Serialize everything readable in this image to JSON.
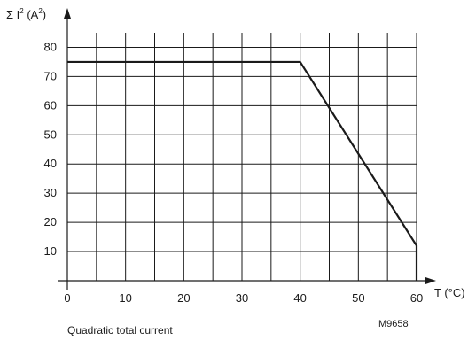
{
  "chart_data": {
    "type": "line",
    "ylabel": {
      "main": "Σ I",
      "sup1": "2",
      "unit_pre": " (A",
      "sup2": "2",
      "unit_post": ")"
    },
    "xlabel": "T (°C)",
    "caption": "Quadratic total current",
    "figure_id": "M9658",
    "xlim": [
      0,
      60
    ],
    "ylim": [
      0,
      85
    ],
    "x_ticks": [
      0,
      10,
      20,
      30,
      40,
      50,
      60
    ],
    "y_ticks": [
      10,
      20,
      30,
      40,
      50,
      60,
      70,
      80
    ],
    "x_grid_step": 5,
    "y_grid_step": 10,
    "grid": true,
    "series": [
      {
        "x": [
          0,
          40,
          60,
          60
        ],
        "y": [
          75,
          75,
          12,
          0
        ]
      }
    ],
    "colors": {
      "line": "#1a1a1a",
      "grid": "#1a1a1a",
      "axis": "#1a1a1a"
    }
  }
}
